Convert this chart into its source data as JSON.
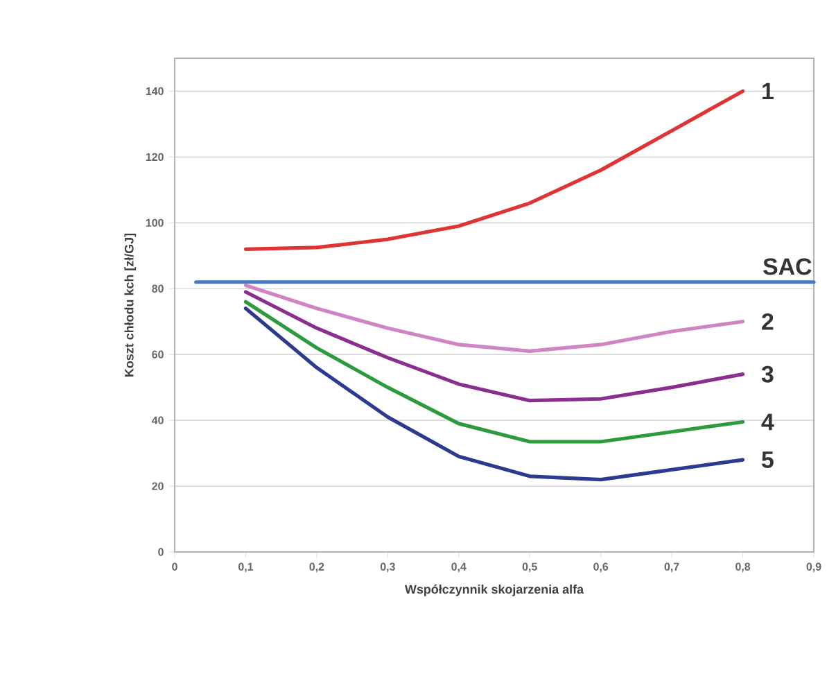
{
  "chart_data": {
    "type": "line",
    "xlabel": "Współczynnik skojarzenia alfa",
    "ylabel": "Koszt chłodu kch [zł/GJ]",
    "x": [
      0.1,
      0.2,
      0.3,
      0.4,
      0.5,
      0.6,
      0.7,
      0.8
    ],
    "series": [
      {
        "name": "1",
        "color": "#e03434",
        "values": [
          92,
          92.5,
          95,
          99,
          106,
          116,
          128,
          140
        ]
      },
      {
        "name": "SAC",
        "color": "#4a78c0",
        "x": [
          0.03,
          0.9
        ],
        "values": [
          82,
          82
        ]
      },
      {
        "name": "2",
        "color": "#d084c4",
        "values": [
          81,
          74,
          68,
          63,
          61,
          63,
          67,
          70
        ]
      },
      {
        "name": "3",
        "color": "#8a2f8f",
        "values": [
          79,
          68,
          59,
          51,
          46,
          46.5,
          50,
          54
        ]
      },
      {
        "name": "4",
        "color": "#2e9a3e",
        "values": [
          76,
          62,
          50,
          39,
          33.5,
          33.5,
          36.5,
          39.5
        ]
      },
      {
        "name": "5",
        "color": "#2c3a8f",
        "values": [
          74,
          56,
          41,
          29,
          23,
          22,
          25,
          28
        ]
      }
    ],
    "xlim": [
      0,
      0.9
    ],
    "ylim": [
      0,
      150
    ],
    "xticks": [
      0,
      {
        "value": 0.1,
        "label": "0,1"
      },
      {
        "value": 0.2,
        "label": "0,2"
      },
      {
        "value": 0.3,
        "label": "0,3"
      },
      {
        "value": 0.4,
        "label": "0,4"
      },
      {
        "value": 0.5,
        "label": "0,5"
      },
      {
        "value": 0.6,
        "label": "0,6"
      },
      {
        "value": 0.7,
        "label": "0,7"
      },
      {
        "value": 0.8,
        "label": "0,8"
      },
      {
        "value": 0.9,
        "label": "0,9"
      }
    ],
    "yticks": [
      0,
      20,
      40,
      60,
      80,
      100,
      120,
      140
    ],
    "grid": "y",
    "marker": "none",
    "line_style": "solid"
  }
}
